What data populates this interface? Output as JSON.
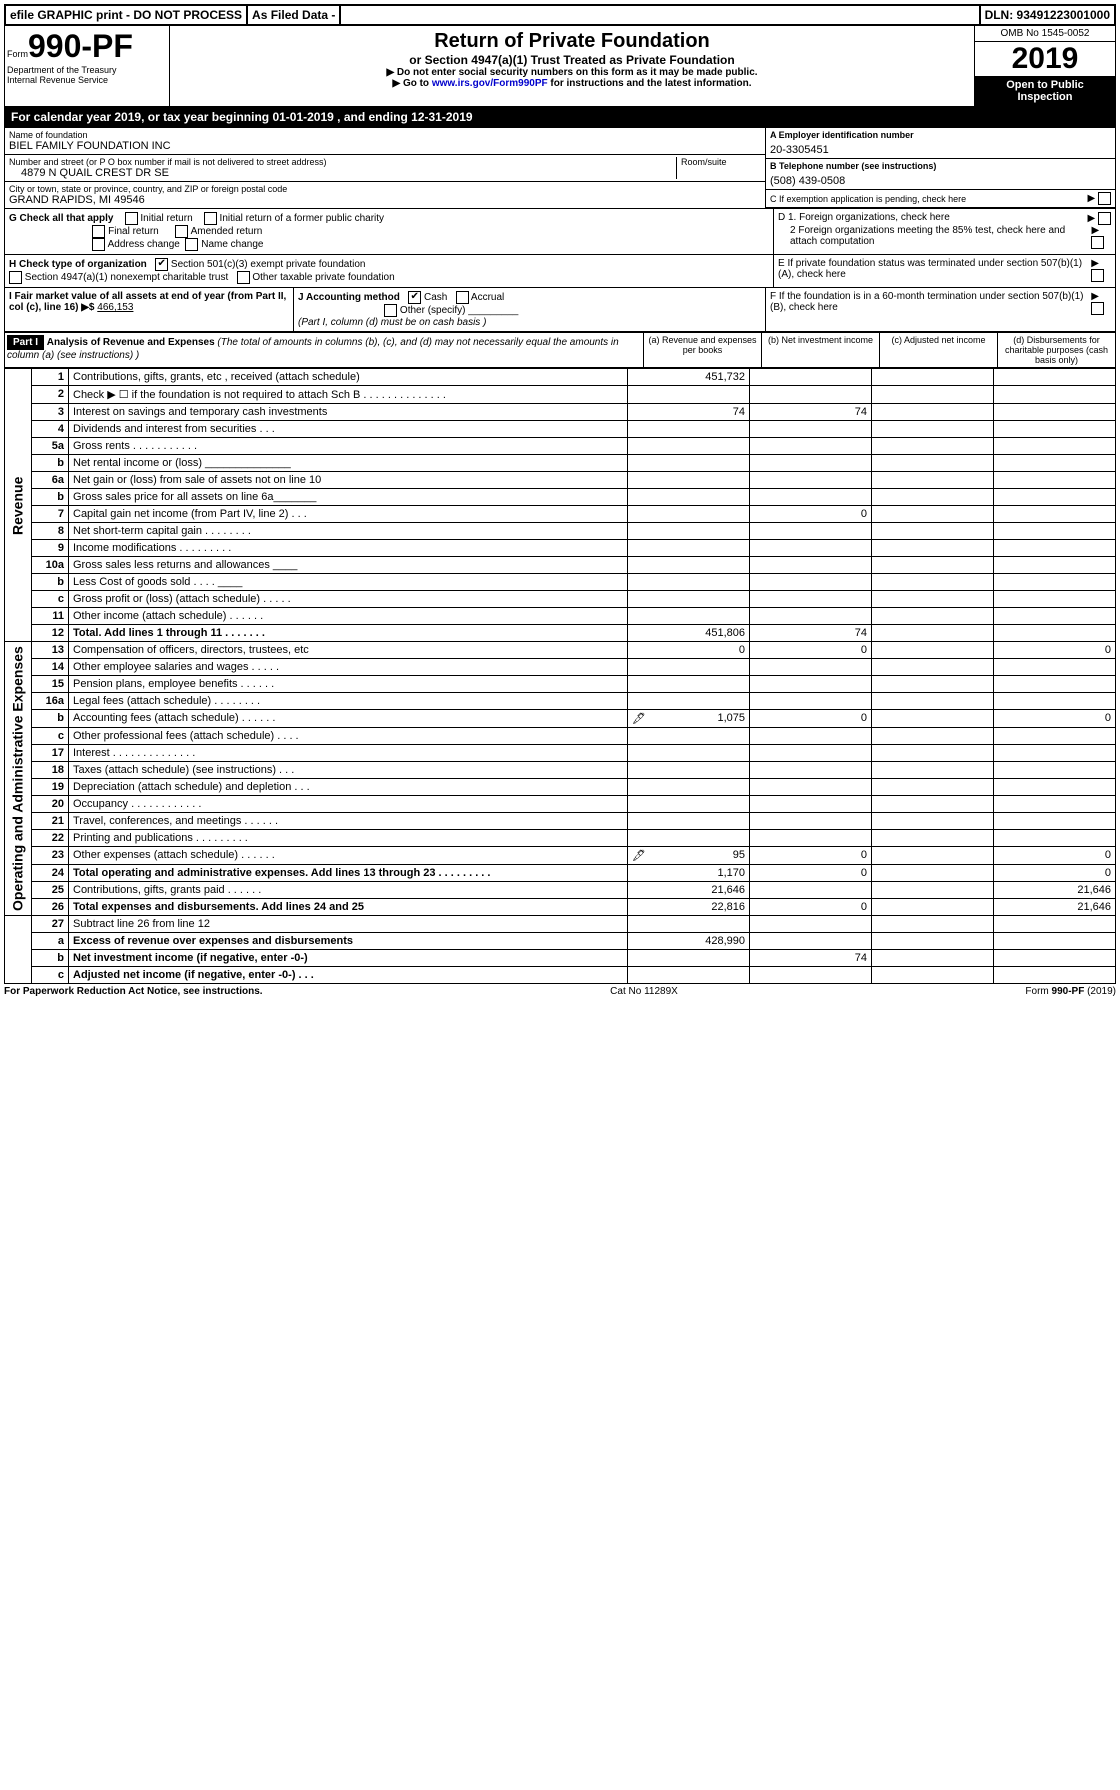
{
  "top": {
    "efile": "efile GRAPHIC print - DO NOT PROCESS",
    "asfiled": "As Filed Data -",
    "dln": "DLN: 93491223001000"
  },
  "form": {
    "form_word": "Form",
    "number": "990-PF",
    "dept": "Department of the Treasury",
    "irs": "Internal Revenue Service"
  },
  "title": {
    "main": "Return of Private Foundation",
    "sub": "or Section 4947(a)(1) Trust Treated as Private Foundation",
    "inst1": "▶ Do not enter social security numbers on this form as it may be made public.",
    "inst2a": "▶ Go to ",
    "inst2link": "www.irs.gov/Form990PF",
    "inst2b": " for instructions and the latest information."
  },
  "year_box": {
    "omb": "OMB No 1545-0052",
    "year": "2019",
    "open": "Open to Public Inspection"
  },
  "cal_year": "For calendar year 2019, or tax year beginning 01-01-2019          , and ending 12-31-2019",
  "name_block": {
    "name_label": "Name of foundation",
    "name": "BIEL FAMILY FOUNDATION INC",
    "addr_label": "Number and street (or P O  box number if mail is not delivered to street address)",
    "room_label": "Room/suite",
    "addr": "4879 N QUAIL CREST DR SE",
    "city_label": "City or town, state or province, country, and ZIP or foreign postal code",
    "city": "GRAND RAPIDS, MI  49546"
  },
  "right_info": {
    "a_label": "A Employer identification number",
    "ein": "20-3305451",
    "b_label": "B Telephone number (see instructions)",
    "phone": "(508) 439-0508",
    "c_label": "C If exemption application is pending, check here",
    "d1": "D 1. Foreign organizations, check here",
    "d2": "2 Foreign organizations meeting the 85% test, check here and attach computation",
    "e": "E  If private foundation status was terminated under section 507(b)(1)(A), check here",
    "f": "F  If the foundation is in a 60-month termination under section 507(b)(1)(B), check here"
  },
  "g": {
    "label": "G Check all that apply",
    "o1": "Initial return",
    "o2": "Initial return of a former public charity",
    "o3": "Final return",
    "o4": "Amended return",
    "o5": "Address change",
    "o6": "Name change"
  },
  "h": {
    "label": "H Check type of organization",
    "o1": "Section 501(c)(3) exempt private foundation",
    "o2": "Section 4947(a)(1) nonexempt charitable trust",
    "o3": "Other taxable private foundation"
  },
  "i": {
    "label": "I Fair market value of all assets at end of year (from Part II, col  (c), line 16) ▶$ ",
    "val": "466,153"
  },
  "j": {
    "label": "J Accounting method",
    "cash": "Cash",
    "accrual": "Accrual",
    "other": "Other (specify)",
    "note": "(Part I, column (d) must be on cash basis )"
  },
  "part1": {
    "hdr": "Part I",
    "title": "Analysis of Revenue and Expenses",
    "note": " (The total of amounts in columns (b), (c), and (d) may not necessarily equal the amounts in column (a) (see instructions) )",
    "col_a": "(a)  Revenue and expenses per books",
    "col_b": "(b) Net investment income",
    "col_c": "(c) Adjusted net income",
    "col_d": "(d) Disbursements for charitable purposes (cash basis only)"
  },
  "rev_label": "Revenue",
  "exp_label": "Operating and Administrative Expenses",
  "rows": [
    {
      "n": "1",
      "d": "Contributions, gifts, grants, etc , received (attach schedule)",
      "a": "451,732",
      "b": "",
      "c": "",
      "dd": ""
    },
    {
      "n": "2",
      "d": "Check ▶ ☐ if the foundation is not required to attach Sch B  .  .  .  .  .  .  .  .  .  .  .  .  .  .",
      "a": "",
      "b": "",
      "c": "",
      "dd": ""
    },
    {
      "n": "3",
      "d": "Interest on savings and temporary cash investments",
      "a": "74",
      "b": "74",
      "c": "",
      "dd": ""
    },
    {
      "n": "4",
      "d": "Dividends and interest from securities  .  .  .",
      "a": "",
      "b": "",
      "c": "",
      "dd": ""
    },
    {
      "n": "5a",
      "d": "Gross rents  .  .  .  .  .  .  .  .  .  .  .",
      "a": "",
      "b": "",
      "c": "",
      "dd": ""
    },
    {
      "n": "b",
      "d": "Net rental income or (loss)  ______________",
      "a": "",
      "b": "",
      "c": "",
      "dd": ""
    },
    {
      "n": "6a",
      "d": "Net gain or (loss) from sale of assets not on line 10",
      "a": "",
      "b": "",
      "c": "",
      "dd": ""
    },
    {
      "n": "b",
      "d": "Gross sales price for all assets on line 6a_______",
      "a": "",
      "b": "",
      "c": "",
      "dd": ""
    },
    {
      "n": "7",
      "d": "Capital gain net income (from Part IV, line 2)  .  .  .",
      "a": "",
      "b": "0",
      "c": "",
      "dd": ""
    },
    {
      "n": "8",
      "d": "Net short-term capital gain  .  .  .  .  .  .  .  .",
      "a": "",
      "b": "",
      "c": "",
      "dd": ""
    },
    {
      "n": "9",
      "d": "Income modifications  .  .  .  .  .  .  .  .  .",
      "a": "",
      "b": "",
      "c": "",
      "dd": ""
    },
    {
      "n": "10a",
      "d": "Gross sales less returns and allowances ____",
      "a": "",
      "b": "",
      "c": "",
      "dd": ""
    },
    {
      "n": "b",
      "d": "Less  Cost of goods sold  .  .  .  .  ____",
      "a": "",
      "b": "",
      "c": "",
      "dd": ""
    },
    {
      "n": "c",
      "d": "Gross profit or (loss) (attach schedule)  .  .  .  .  .",
      "a": "",
      "b": "",
      "c": "",
      "dd": ""
    },
    {
      "n": "11",
      "d": "Other income (attach schedule)  .  .  .  .  .  .",
      "a": "",
      "b": "",
      "c": "",
      "dd": ""
    },
    {
      "n": "12",
      "d": "Total. Add lines 1 through 11  .  .  .  .  .  .  .",
      "a": "451,806",
      "b": "74",
      "c": "",
      "dd": "",
      "bold": true
    },
    {
      "n": "13",
      "d": "Compensation of officers, directors, trustees, etc",
      "a": "0",
      "b": "0",
      "c": "",
      "dd": "0"
    },
    {
      "n": "14",
      "d": "Other employee salaries and wages  .  .  .  .  .",
      "a": "",
      "b": "",
      "c": "",
      "dd": ""
    },
    {
      "n": "15",
      "d": "Pension plans, employee benefits  .  .  .  .  .  .",
      "a": "",
      "b": "",
      "c": "",
      "dd": ""
    },
    {
      "n": "16a",
      "d": "Legal fees (attach schedule)  .  .  .  .  .  .  .  .",
      "a": "",
      "b": "",
      "c": "",
      "dd": ""
    },
    {
      "n": "b",
      "d": "Accounting fees (attach schedule)  .  .  .  .  .  .",
      "a": "1,075",
      "b": "0",
      "c": "",
      "dd": "0",
      "icon": true
    },
    {
      "n": "c",
      "d": "Other professional fees (attach schedule)  .  .  .  .",
      "a": "",
      "b": "",
      "c": "",
      "dd": ""
    },
    {
      "n": "17",
      "d": "Interest  .  .  .  .  .  .  .  .  .  .  .  .  .  .",
      "a": "",
      "b": "",
      "c": "",
      "dd": ""
    },
    {
      "n": "18",
      "d": "Taxes (attach schedule) (see instructions)  .  .  .",
      "a": "",
      "b": "",
      "c": "",
      "dd": ""
    },
    {
      "n": "19",
      "d": "Depreciation (attach schedule) and depletion  .  .  .",
      "a": "",
      "b": "",
      "c": "",
      "dd": ""
    },
    {
      "n": "20",
      "d": "Occupancy  .  .  .  .  .  .  .  .  .  .  .  .",
      "a": "",
      "b": "",
      "c": "",
      "dd": ""
    },
    {
      "n": "21",
      "d": "Travel, conferences, and meetings  .  .  .  .  .  .",
      "a": "",
      "b": "",
      "c": "",
      "dd": ""
    },
    {
      "n": "22",
      "d": "Printing and publications  .  .  .  .  .  .  .  .  .",
      "a": "",
      "b": "",
      "c": "",
      "dd": ""
    },
    {
      "n": "23",
      "d": "Other expenses (attach schedule)  .  .  .  .  .  .",
      "a": "95",
      "b": "0",
      "c": "",
      "dd": "0",
      "icon": true
    },
    {
      "n": "24",
      "d": "Total operating and administrative expenses. Add lines 13 through 23  .  .  .  .  .  .  .  .  .",
      "a": "1,170",
      "b": "0",
      "c": "",
      "dd": "0",
      "bold": true
    },
    {
      "n": "25",
      "d": "Contributions, gifts, grants paid  .  .  .  .  .  .",
      "a": "21,646",
      "b": "",
      "c": "",
      "dd": "21,646"
    },
    {
      "n": "26",
      "d": "Total expenses and disbursements. Add lines 24 and 25",
      "a": "22,816",
      "b": "0",
      "c": "",
      "dd": "21,646",
      "bold": true
    },
    {
      "n": "27",
      "d": "Subtract line 26 from line 12",
      "a": "",
      "b": "",
      "c": "",
      "dd": ""
    },
    {
      "n": "a",
      "d": "Excess of revenue over expenses and disbursements",
      "a": "428,990",
      "b": "",
      "c": "",
      "dd": "",
      "bold": true
    },
    {
      "n": "b",
      "d": "Net investment income (if negative, enter -0-)",
      "a": "",
      "b": "74",
      "c": "",
      "dd": "",
      "bold": true
    },
    {
      "n": "c",
      "d": "Adjusted net income (if negative, enter -0-)  .  .  .",
      "a": "",
      "b": "",
      "c": "",
      "dd": "",
      "bold": true
    }
  ],
  "footer": {
    "left": "For Paperwork Reduction Act Notice, see instructions.",
    "mid": "Cat  No  11289X",
    "right": "Form 990-PF (2019)"
  }
}
